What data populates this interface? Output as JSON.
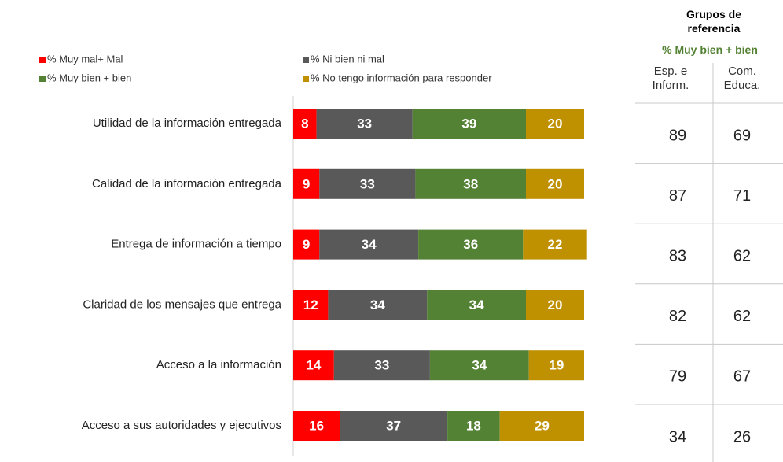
{
  "chart_data": {
    "type": "bar",
    "orientation": "horizontal",
    "stacked": true,
    "categories": [
      "Utilidad de la información entregada",
      "Calidad de la información entregada",
      "Entrega de información a tiempo",
      "Claridad de los mensajes que entrega",
      "Acceso a la información",
      "Acceso a sus autoridades y ejecutivos"
    ],
    "series": [
      {
        "name": "% Muy mal+ Mal",
        "color": "#ff0000",
        "values": [
          8,
          9,
          9,
          12,
          14,
          16
        ]
      },
      {
        "name": "% Ni bien ni mal",
        "color": "#595959",
        "values": [
          33,
          33,
          34,
          34,
          33,
          37
        ]
      },
      {
        "name": "% Muy bien + bien",
        "color": "#548235",
        "values": [
          39,
          38,
          36,
          34,
          34,
          18
        ]
      },
      {
        "name": "% No tengo información para responder",
        "color": "#bf9000",
        "values": [
          20,
          20,
          22,
          20,
          19,
          29
        ]
      }
    ],
    "xlim": [
      0,
      100
    ]
  },
  "table": {
    "title": "Grupos de referencia",
    "subtitle": "% Muy bien + bien",
    "columns": [
      "Esp. e Inform.",
      "Com. Educa."
    ],
    "rows": [
      [
        89,
        69
      ],
      [
        87,
        71
      ],
      [
        83,
        62
      ],
      [
        82,
        62
      ],
      [
        79,
        67
      ],
      [
        34,
        26
      ]
    ]
  }
}
